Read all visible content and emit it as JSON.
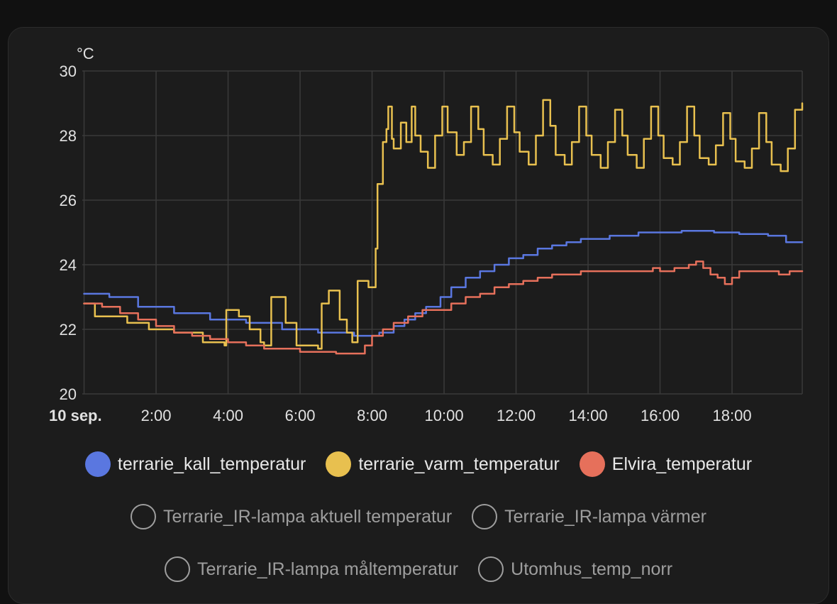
{
  "chart_data": {
    "type": "line",
    "unit_label": "°C",
    "x_ticks": [
      "10 sep.",
      "2:00",
      "4:00",
      "6:00",
      "8:00",
      "10:00",
      "12:00",
      "14:00",
      "16:00",
      "18:00"
    ],
    "x_tick_hours": [
      0,
      2,
      4,
      6,
      8,
      10,
      12,
      14,
      16,
      18
    ],
    "xlim": [
      -0.05,
      19.95
    ],
    "ylim": [
      20,
      30
    ],
    "y_ticks": [
      20,
      22,
      24,
      26,
      28,
      30
    ],
    "grid": true,
    "legend_position": "bottom",
    "series": [
      {
        "name": "terrarie_kall_temperatur",
        "color": "#5a77e0",
        "step": true,
        "x": [
          0,
          0.7,
          1.5,
          2.5,
          3.5,
          4.5,
          5.5,
          6.5,
          7.5,
          8.2,
          8.6,
          8.9,
          9.2,
          9.5,
          9.9,
          10.2,
          10.6,
          11.0,
          11.4,
          11.8,
          12.2,
          12.6,
          13.0,
          13.4,
          13.8,
          14.2,
          14.6,
          15.0,
          15.4,
          15.8,
          16.2,
          16.6,
          17.0,
          17.5,
          18.2,
          19.0,
          19.5,
          19.95
        ],
        "y": [
          23.1,
          23.0,
          22.7,
          22.5,
          22.3,
          22.2,
          22.0,
          21.9,
          21.8,
          21.9,
          22.1,
          22.3,
          22.5,
          22.7,
          23.0,
          23.3,
          23.6,
          23.8,
          24.0,
          24.2,
          24.3,
          24.5,
          24.6,
          24.7,
          24.8,
          24.8,
          24.9,
          24.9,
          25.0,
          25.0,
          25.0,
          25.05,
          25.05,
          25.0,
          24.95,
          24.9,
          24.7,
          24.7
        ]
      },
      {
        "name": "terrarie_varm_temperatur",
        "color": "#e8c04f",
        "step": true,
        "x": [
          0,
          0.3,
          1.2,
          1.8,
          2.5,
          3.3,
          3.9,
          3.95,
          4.3,
          4.6,
          4.9,
          5.0,
          5.2,
          5.6,
          5.9,
          6.5,
          6.6,
          6.8,
          7.1,
          7.3,
          7.45,
          7.6,
          7.9,
          8.1,
          8.15,
          8.3,
          8.4,
          8.45,
          8.55,
          8.6,
          8.8,
          8.95,
          9.1,
          9.2,
          9.35,
          9.55,
          9.75,
          9.95,
          10.1,
          10.35,
          10.55,
          10.75,
          10.95,
          11.1,
          11.35,
          11.55,
          11.75,
          11.95,
          12.1,
          12.35,
          12.55,
          12.75,
          12.95,
          13.1,
          13.35,
          13.55,
          13.75,
          13.95,
          14.1,
          14.35,
          14.55,
          14.75,
          14.95,
          15.1,
          15.35,
          15.55,
          15.75,
          15.95,
          16.1,
          16.35,
          16.55,
          16.75,
          16.95,
          17.1,
          17.35,
          17.55,
          17.75,
          17.95,
          18.1,
          18.35,
          18.55,
          18.75,
          18.95,
          19.1,
          19.35,
          19.55,
          19.75,
          19.95
        ],
        "y": [
          22.8,
          22.4,
          22.2,
          22.0,
          21.9,
          21.6,
          21.5,
          22.6,
          22.4,
          22.0,
          21.6,
          21.5,
          23.0,
          22.2,
          21.5,
          21.4,
          22.8,
          23.2,
          22.3,
          21.9,
          21.6,
          23.5,
          23.3,
          24.5,
          26.5,
          27.8,
          28.2,
          28.9,
          27.9,
          27.6,
          28.4,
          27.8,
          28.9,
          28.0,
          27.5,
          27.0,
          28.0,
          28.9,
          28.1,
          27.4,
          27.8,
          28.9,
          28.2,
          27.4,
          27.1,
          27.9,
          28.9,
          28.1,
          27.5,
          27.1,
          28.0,
          29.1,
          28.3,
          27.4,
          27.1,
          27.8,
          28.9,
          28.0,
          27.4,
          27.0,
          27.8,
          28.8,
          28.0,
          27.4,
          27.0,
          27.9,
          28.9,
          28.0,
          27.3,
          27.1,
          27.8,
          28.9,
          28.0,
          27.3,
          27.1,
          27.7,
          28.7,
          27.9,
          27.2,
          27.0,
          27.6,
          28.7,
          27.8,
          27.1,
          26.9,
          27.6,
          28.8,
          29.0
        ]
      },
      {
        "name": "Elvira_temperatur",
        "color": "#e6705b",
        "step": true,
        "x": [
          0,
          0.5,
          1.0,
          1.5,
          2.0,
          2.5,
          3.0,
          3.5,
          4.0,
          4.5,
          5.0,
          5.5,
          6.0,
          6.5,
          7.0,
          7.5,
          7.8,
          8.0,
          8.3,
          8.6,
          9.0,
          9.4,
          9.8,
          10.2,
          10.6,
          11.0,
          11.4,
          11.8,
          12.2,
          12.6,
          13.0,
          13.4,
          13.8,
          14.2,
          14.6,
          15.0,
          15.4,
          15.8,
          16.0,
          16.4,
          16.8,
          17.0,
          17.2,
          17.4,
          17.6,
          17.8,
          18.0,
          18.2,
          18.5,
          18.9,
          19.3,
          19.6,
          19.95
        ],
        "y": [
          22.8,
          22.7,
          22.5,
          22.3,
          22.1,
          21.9,
          21.8,
          21.7,
          21.6,
          21.5,
          21.4,
          21.4,
          21.3,
          21.3,
          21.25,
          21.25,
          21.5,
          21.8,
          22.0,
          22.2,
          22.4,
          22.6,
          22.6,
          22.8,
          23.0,
          23.1,
          23.3,
          23.4,
          23.5,
          23.6,
          23.7,
          23.7,
          23.8,
          23.8,
          23.8,
          23.8,
          23.8,
          23.9,
          23.8,
          23.9,
          24.0,
          24.1,
          23.9,
          23.7,
          23.6,
          23.4,
          23.6,
          23.8,
          23.8,
          23.8,
          23.7,
          23.8,
          23.8
        ]
      }
    ]
  },
  "legend": {
    "row1": [
      {
        "name": "terrarie_kall_temperatur",
        "color": "#5a77e0",
        "active": true
      },
      {
        "name": "terrarie_varm_temperatur",
        "color": "#e8c04f",
        "active": true
      },
      {
        "name": "Elvira_temperatur",
        "color": "#e6705b",
        "active": true
      }
    ],
    "row2": [
      {
        "name": "Terrarie_IR-lampa aktuell temperatur",
        "active": false
      },
      {
        "name": "Terrarie_IR-lampa värmer",
        "active": false
      }
    ],
    "row3": [
      {
        "name": "Terrarie_IR-lampa måltemperatur",
        "active": false
      },
      {
        "name": "Utomhus_temp_norr",
        "active": false
      }
    ]
  }
}
